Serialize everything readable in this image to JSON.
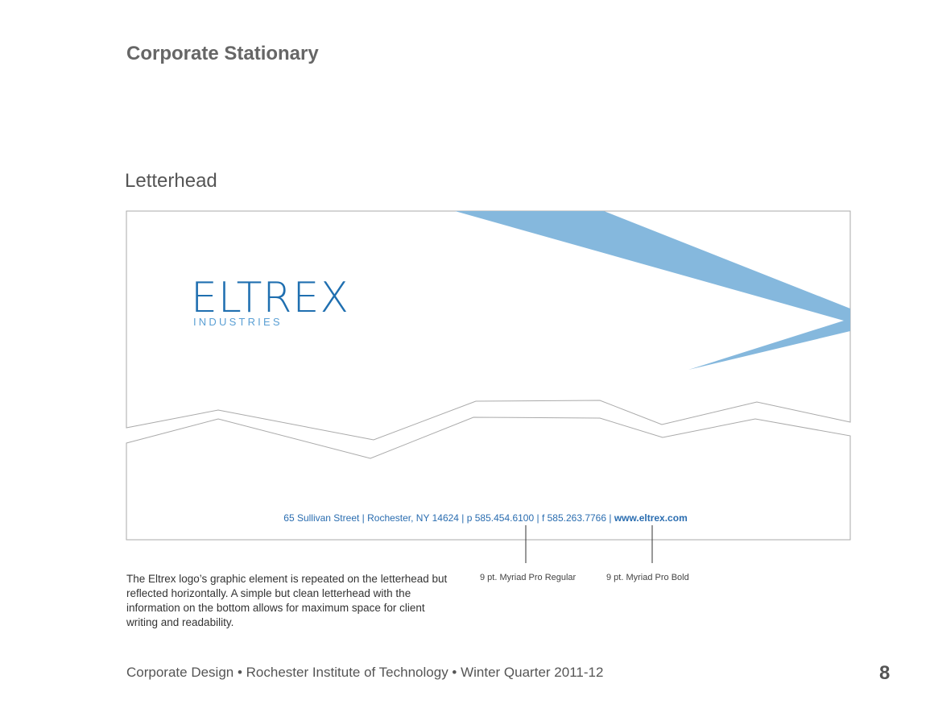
{
  "header": {
    "title": "Corporate Stationary"
  },
  "section": {
    "title": "Letterhead"
  },
  "letterhead": {
    "logo": "ELTREX",
    "logo_subtitle": "INDUSTRIES",
    "address": "65 Sullivan Street | Rochester, NY 14624 | p 585.454.6100 | f  585.263.7766 | ",
    "website": "www.eltrex.com"
  },
  "annotations": [
    "9 pt. Myriad Pro Regular",
    "9 pt. Myriad Pro Bold"
  ],
  "description": "The Eltrex logo’s graphic element is repeated on the letterhead but reflected horizontally. A simple but clean letterhead with the information on the bottom allows for maximum space for client writing and readability.",
  "footer": {
    "text": "Corporate Design • Rochester Institute of Technology • Winter Quarter 2011-12",
    "page_number": "8"
  }
}
